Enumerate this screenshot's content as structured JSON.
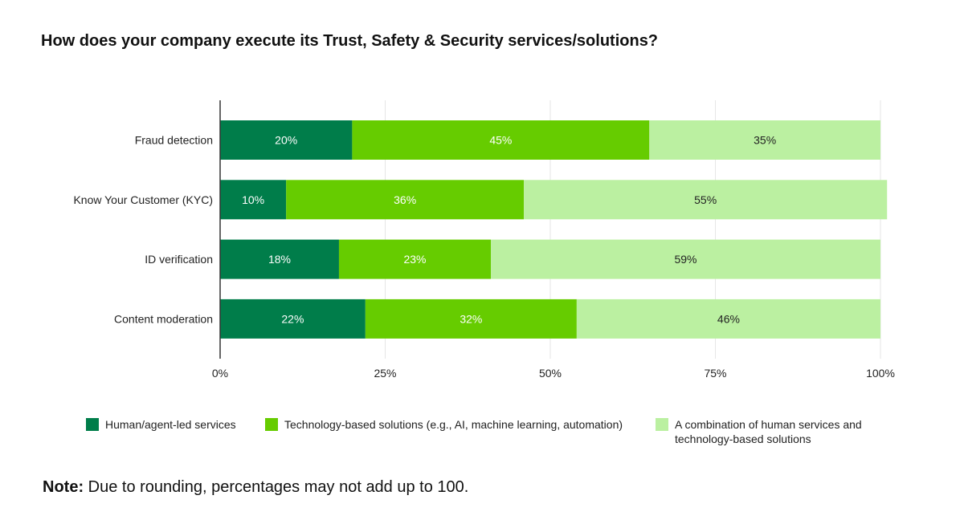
{
  "chart_data": {
    "type": "bar",
    "orientation": "horizontal",
    "stacked": true,
    "title": "How does your company execute its Trust, Safety & Security services/solutions?",
    "categories": [
      "Fraud detection",
      "Know Your Customer (KYC)",
      "ID verification",
      "Content moderation"
    ],
    "series": [
      {
        "name": "Human/agent-led services",
        "values": [
          20,
          10,
          18,
          22
        ],
        "labels": [
          "20%",
          "10%",
          "18%",
          "22%"
        ],
        "color": "#007d4a",
        "label_color": "#ffffff"
      },
      {
        "name": "Technology-based solutions (e.g., AI, machine learning, automation)",
        "values": [
          45,
          36,
          23,
          32
        ],
        "labels": [
          "45%",
          "36%",
          "23%",
          "32%"
        ],
        "color": "#66cc00",
        "label_color": "#ffffff"
      },
      {
        "name_line1": "A combination of human services and",
        "name_line2": "technology-based solutions",
        "values": [
          35,
          55,
          59,
          46
        ],
        "labels": [
          "35%",
          "55%",
          "59%",
          "46%"
        ],
        "color": "#bbf0a1",
        "label_color": "#222222"
      }
    ],
    "xlim": [
      0,
      100
    ],
    "xticks": [
      0,
      25,
      50,
      75,
      100
    ],
    "xtick_labels": [
      "0%",
      "25%",
      "50%",
      "75%",
      "100%"
    ],
    "grid": true,
    "legend_position": "bottom"
  },
  "note": {
    "label": "Note:",
    "text": " Due to rounding, percentages may not add up to 100."
  }
}
